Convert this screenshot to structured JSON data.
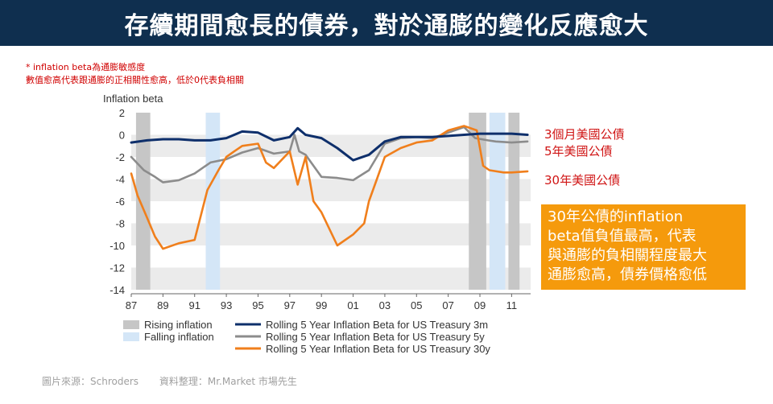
{
  "title": "存續期間愈長的債券，對於通膨的變化反應愈大",
  "notes": [
    "* inflation  beta為通膨敏感度",
    "數值愈高代表跟通膨的正相關性愈高，低於0代表負相關"
  ],
  "series_labels": {
    "s3m": "3個月美國公債",
    "s5y": "5年美國公債",
    "s30y": "30年美國公債"
  },
  "callout": {
    "lines": [
      "30年公債的inflation",
      "beta值負值最高，代表",
      "與通膨的負相關程度最大",
      "通膨愈高，債券價格愈低"
    ]
  },
  "source": {
    "left": "圖片來源：Schroders",
    "right": "資料整理：Mr.Market  市場先生"
  },
  "colors": {
    "title_bg": "#0f2f4f",
    "s3m": "#0e2f6b",
    "s5y": "#8c8c8c",
    "s30y": "#f07f1c",
    "rising": "#c6c6c6",
    "falling": "#d4e6f7",
    "band": "#ebebeb",
    "callout_bg": "#f59a0c",
    "note_red": "#d00000"
  },
  "chart_data": {
    "type": "line",
    "ylabel": "Inflation beta",
    "ylim": [
      -14,
      2
    ],
    "xlim": [
      1987,
      2012.2
    ],
    "yticks": [
      2,
      0,
      -2,
      -4,
      -6,
      -8,
      -10,
      -12,
      -14
    ],
    "xticks": [
      {
        "value": 1987,
        "label": "87"
      },
      {
        "value": 1989,
        "label": "89"
      },
      {
        "value": 1991,
        "label": "91"
      },
      {
        "value": 1993,
        "label": "93"
      },
      {
        "value": 1995,
        "label": "95"
      },
      {
        "value": 1997,
        "label": "97"
      },
      {
        "value": 1999,
        "label": "99"
      },
      {
        "value": 2001,
        "label": "01"
      },
      {
        "value": 2003,
        "label": "03"
      },
      {
        "value": 2005,
        "label": "05"
      },
      {
        "value": 2007,
        "label": "07"
      },
      {
        "value": 2009,
        "label": "09"
      },
      {
        "value": 2011,
        "label": "11"
      }
    ],
    "bands": [
      [
        0,
        -2
      ],
      [
        -4,
        -6
      ],
      [
        -8,
        -10
      ],
      [
        -12,
        -14
      ]
    ],
    "rising_periods": [
      [
        1987.3,
        1988.2
      ],
      [
        2008.3,
        2009.4
      ],
      [
        2010.8,
        2011.5
      ]
    ],
    "falling_periods": [
      [
        1991.7,
        1992.6
      ],
      [
        2009.6,
        2010.6
      ]
    ],
    "legend": [
      {
        "kind": "area",
        "key": "rising",
        "label": "Rising inflation"
      },
      {
        "kind": "area",
        "key": "falling",
        "label": "Falling inflation"
      },
      {
        "kind": "line",
        "key": "s3m",
        "label": "Rolling 5 Year Inflation Beta for US Treasury 3m"
      },
      {
        "kind": "line",
        "key": "s5y",
        "label": "Rolling 5 Year Inflation Beta for US Treasury 5y"
      },
      {
        "kind": "line",
        "key": "s30y",
        "label": "Rolling 5 Year Inflation Beta for US Treasury 30y"
      }
    ],
    "series": [
      {
        "name": "Rolling 5 Year Inflation Beta for US Treasury 3m",
        "key": "s3m",
        "x": [
          1987,
          1988,
          1989,
          1990,
          1991,
          1992,
          1993,
          1994,
          1995,
          1996,
          1997,
          1997.5,
          1998,
          1999,
          2000,
          2001,
          2002,
          2003,
          2004,
          2005,
          2006,
          2007,
          2008,
          2009,
          2010,
          2011,
          2012
        ],
        "y": [
          -0.7,
          -0.5,
          -0.4,
          -0.4,
          -0.5,
          -0.5,
          -0.3,
          0.3,
          0.2,
          -0.5,
          -0.2,
          0.6,
          0.0,
          -0.3,
          -1.2,
          -2.3,
          -1.8,
          -0.6,
          -0.2,
          -0.2,
          -0.2,
          -0.1,
          0.0,
          0.1,
          0.1,
          0.1,
          0.0
        ]
      },
      {
        "name": "Rolling 5 Year Inflation Beta for US Treasury 5y",
        "key": "s5y",
        "x": [
          1987,
          1987.8,
          1988.5,
          1989,
          1990,
          1991,
          1992,
          1993,
          1994,
          1995,
          1996,
          1997,
          1997.3,
          1997.6,
          1998,
          1999,
          2000,
          2001,
          2002,
          2003,
          2004,
          2005,
          2006,
          2007,
          2008,
          2008.7,
          2009.5,
          2010,
          2011,
          2012
        ],
        "y": [
          -2.0,
          -3.2,
          -3.8,
          -4.3,
          -4.1,
          -3.5,
          -2.5,
          -2.2,
          -1.6,
          -1.2,
          -1.7,
          -1.5,
          0.0,
          -1.5,
          -1.8,
          -3.8,
          -3.9,
          -4.1,
          -3.2,
          -0.8,
          -0.3,
          -0.2,
          -0.3,
          0.2,
          0.7,
          -0.3,
          -0.5,
          -0.6,
          -0.7,
          -0.6
        ]
      },
      {
        "name": "Rolling 5 Year Inflation Beta for US Treasury 30y",
        "key": "s30y",
        "x": [
          1987,
          1987.4,
          1988,
          1988.5,
          1989,
          1990,
          1991,
          1991.8,
          1992.5,
          1993,
          1993.5,
          1994,
          1995,
          1995.5,
          1996,
          1997,
          1997.5,
          1998,
          1998.5,
          1999,
          2000,
          2001,
          2001.7,
          2002,
          2002.5,
          2003,
          2004,
          2005,
          2006,
          2007,
          2008,
          2008.8,
          2009.2,
          2009.6,
          2010.5,
          2011,
          2012
        ],
        "y": [
          -3.5,
          -5.5,
          -7.5,
          -9.2,
          -10.3,
          -9.8,
          -9.5,
          -5.0,
          -3.2,
          -2.0,
          -1.5,
          -1.0,
          -0.8,
          -2.5,
          -3.0,
          -1.5,
          -4.5,
          -2.0,
          -6.0,
          -7.0,
          -10.0,
          -9.0,
          -8.0,
          -6.0,
          -4.0,
          -2.0,
          -1.2,
          -0.7,
          -0.5,
          0.4,
          0.8,
          0.4,
          -2.8,
          -3.2,
          -3.4,
          -3.4,
          -3.3
        ]
      }
    ]
  }
}
